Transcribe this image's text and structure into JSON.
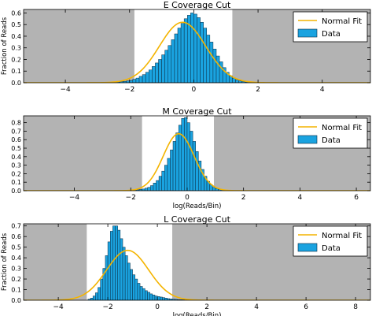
{
  "chart_data": [
    {
      "type": "bar",
      "title": "E Coverage Cut",
      "xlabel": "",
      "ylabel": "Fraction of Reads",
      "xlim": [
        -5.3,
        5.5
      ],
      "ylim": [
        0,
        0.63
      ],
      "xticks": [
        -4,
        -2,
        0,
        2,
        4
      ],
      "yticks": [
        0.0,
        0.1,
        0.2,
        0.3,
        0.4,
        0.5,
        0.6
      ],
      "ytick_labels": [
        "0.0",
        "0.1",
        "0.2",
        "0.3",
        "0.4",
        "0.5",
        "0.6"
      ],
      "cut_range": [
        -1.85,
        1.2
      ],
      "normal_fit": {
        "mu": -0.35,
        "sigma": 0.72,
        "peak": 0.52
      },
      "histogram": {
        "start": -2.5,
        "bin_width": 0.1,
        "values": [
          0.005,
          0.007,
          0.01,
          0.012,
          0.015,
          0.02,
          0.03,
          0.04,
          0.055,
          0.07,
          0.09,
          0.11,
          0.14,
          0.17,
          0.2,
          0.24,
          0.28,
          0.32,
          0.37,
          0.42,
          0.47,
          0.51,
          0.55,
          0.58,
          0.6,
          0.59,
          0.56,
          0.52,
          0.47,
          0.41,
          0.35,
          0.29,
          0.23,
          0.18,
          0.13,
          0.09,
          0.06,
          0.04,
          0.025,
          0.015,
          0.01,
          0.006,
          0.004
        ]
      },
      "legend": {
        "position": "top-right",
        "fit_label": "Normal Fit",
        "data_label": "Data"
      }
    },
    {
      "type": "bar",
      "title": "M Coverage Cut",
      "xlabel": "log(Reads/Bin)",
      "ylabel": "",
      "xlim": [
        -5.8,
        6.5
      ],
      "ylim": [
        0,
        0.88
      ],
      "xticks": [
        -4,
        -2,
        0,
        2,
        4,
        6
      ],
      "yticks": [
        0.0,
        0.1,
        0.2,
        0.3,
        0.4,
        0.5,
        0.6,
        0.7,
        0.8
      ],
      "ytick_labels": [
        "0.0",
        "0.1",
        "0.2",
        "0.3",
        "0.4",
        "0.5",
        "0.6",
        "0.7",
        "0.8"
      ],
      "cut_range": [
        -1.6,
        0.95
      ],
      "normal_fit": {
        "mu": -0.3,
        "sigma": 0.55,
        "peak": 0.67
      },
      "histogram": {
        "start": -2.0,
        "bin_width": 0.1,
        "values": [
          0.004,
          0.006,
          0.01,
          0.015,
          0.02,
          0.03,
          0.04,
          0.06,
          0.09,
          0.12,
          0.17,
          0.23,
          0.3,
          0.38,
          0.48,
          0.58,
          0.68,
          0.77,
          0.85,
          0.86,
          0.8,
          0.7,
          0.58,
          0.46,
          0.35,
          0.25,
          0.17,
          0.11,
          0.07,
          0.04,
          0.025,
          0.015,
          0.01,
          0.006,
          0.004
        ]
      },
      "legend": {
        "position": "top-right",
        "fit_label": "Normal Fit",
        "data_label": "Data"
      }
    },
    {
      "type": "bar",
      "title": "L Coverage Cut",
      "xlabel": "log(Reads/Bin)",
      "ylabel": "Fraction of Reads",
      "xlim": [
        -5.4,
        8.6
      ],
      "ylim": [
        0,
        0.72
      ],
      "xticks": [
        -4,
        -2,
        0,
        2,
        4,
        6,
        8
      ],
      "yticks": [
        0.0,
        0.1,
        0.2,
        0.3,
        0.4,
        0.5,
        0.6,
        0.7
      ],
      "ytick_labels": [
        "0.0",
        "0.1",
        "0.2",
        "0.3",
        "0.4",
        "0.5",
        "0.6",
        "0.7"
      ],
      "cut_range": [
        -2.85,
        0.6
      ],
      "normal_fit": {
        "mu": -1.2,
        "sigma": 0.85,
        "peak": 0.47
      },
      "histogram": {
        "start": -2.8,
        "bin_width": 0.1,
        "values": [
          0.01,
          0.02,
          0.04,
          0.07,
          0.12,
          0.2,
          0.3,
          0.42,
          0.55,
          0.65,
          0.7,
          0.7,
          0.66,
          0.58,
          0.5,
          0.42,
          0.35,
          0.29,
          0.24,
          0.2,
          0.16,
          0.13,
          0.11,
          0.09,
          0.075,
          0.06,
          0.05,
          0.04,
          0.035,
          0.03,
          0.025,
          0.02,
          0.015,
          0.012,
          0.01,
          0.008,
          0.006,
          0.005,
          0.004,
          0.003,
          0.003,
          0.002,
          0.002,
          0.002,
          0.001,
          0.001,
          0.001
        ]
      },
      "legend": {
        "position": "top-right",
        "fit_label": "Normal Fit",
        "data_label": "Data"
      }
    }
  ],
  "colors": {
    "bar": "#1aa3e0",
    "bar_edge": "#0a2a40",
    "fit": "#f4b400",
    "shade": "#b3b3b3",
    "cut_window": "#ffffff"
  }
}
